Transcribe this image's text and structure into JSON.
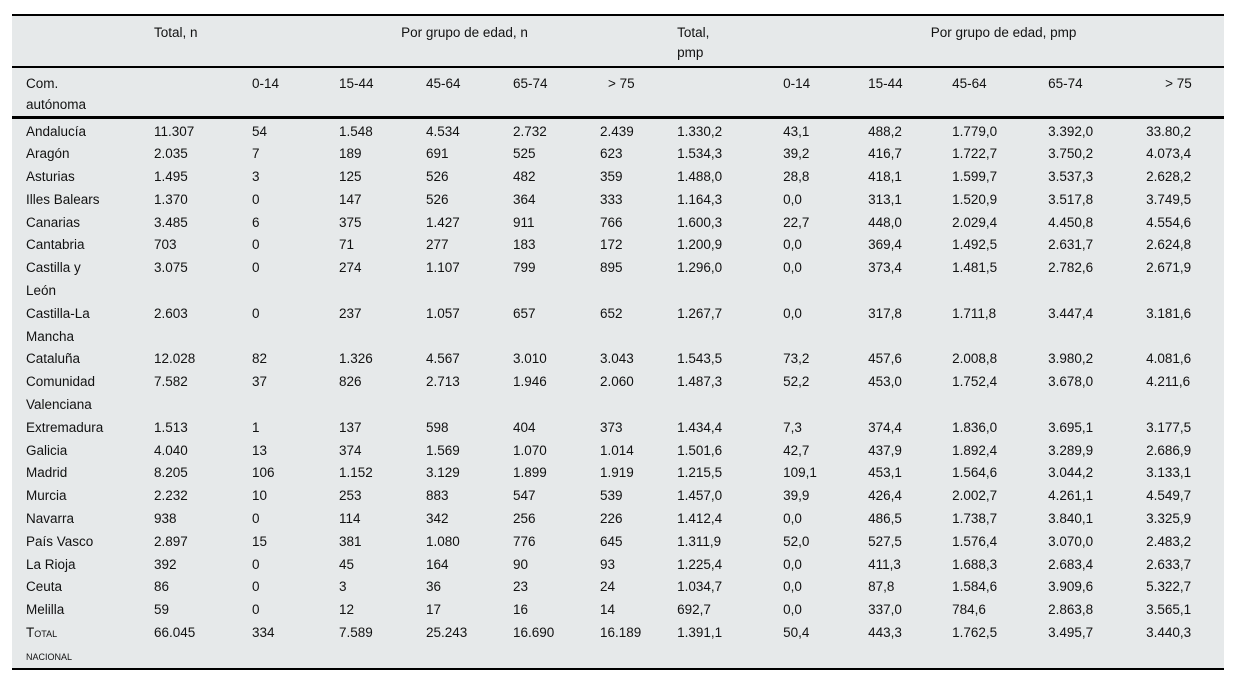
{
  "table": {
    "group_headers": {
      "total_n": "Total, n",
      "age_n": "Por grupo de edad, n",
      "total_pmp_lines": [
        "Total,",
        "pmp"
      ],
      "age_pmp": "Por grupo de edad, pmp"
    },
    "row_header": "Com. autónoma",
    "age_cols": [
      "0-14",
      "15-44",
      "45-64",
      "65-74",
      "> 75"
    ],
    "rows": [
      {
        "name": "Andalucía",
        "values": [
          "11.307",
          "54",
          "1.548",
          "4.534",
          "2.732",
          "2.439",
          "1.330,2",
          "43,1",
          "488,2",
          "1.779,0",
          "3.392,0",
          "33.80,2"
        ]
      },
      {
        "name": "Aragón",
        "values": [
          "2.035",
          "7",
          "189",
          "691",
          "525",
          "623",
          "1.534,3",
          "39,2",
          "416,7",
          "1.722,7",
          "3.750,2",
          "4.073,4"
        ]
      },
      {
        "name": "Asturias",
        "values": [
          "1.495",
          "3",
          "125",
          "526",
          "482",
          "359",
          "1.488,0",
          "28,8",
          "418,1",
          "1.599,7",
          "3.537,3",
          "2.628,2"
        ]
      },
      {
        "name": "Illes Balears",
        "values": [
          "1.370",
          "0",
          "147",
          "526",
          "364",
          "333",
          "1.164,3",
          "0,0",
          "313,1",
          "1.520,9",
          "3.517,8",
          "3.749,5"
        ]
      },
      {
        "name": "Canarias",
        "values": [
          "3.485",
          "6",
          "375",
          "1.427",
          "911",
          "766",
          "1.600,3",
          "22,7",
          "448,0",
          "2.029,4",
          "4.450,8",
          "4.554,6"
        ]
      },
      {
        "name": "Cantabria",
        "values": [
          "703",
          "0",
          "71",
          "277",
          "183",
          "172",
          "1.200,9",
          "0,0",
          "369,4",
          "1.492,5",
          "2.631,7",
          "2.624,8"
        ]
      },
      {
        "name": "Castilla y León",
        "values": [
          "3.075",
          "0",
          "274",
          "1.107",
          "799",
          "895",
          "1.296,0",
          "0,0",
          "373,4",
          "1.481,5",
          "2.782,6",
          "2.671,9"
        ]
      },
      {
        "name": "Castilla-La Mancha",
        "values": [
          "2.603",
          "0",
          "237",
          "1.057",
          "657",
          "652",
          "1.267,7",
          "0,0",
          "317,8",
          "1.711,8",
          "3.447,4",
          "3.181,6"
        ]
      },
      {
        "name": "Cataluña",
        "values": [
          "12.028",
          "82",
          "1.326",
          "4.567",
          "3.010",
          "3.043",
          "1.543,5",
          "73,2",
          "457,6",
          "2.008,8",
          "3.980,2",
          "4.081,6"
        ]
      },
      {
        "name": "Comunidad Valenciana",
        "values": [
          "7.582",
          "37",
          "826",
          "2.713",
          "1.946",
          "2.060",
          "1.487,3",
          "52,2",
          "453,0",
          "1.752,4",
          "3.678,0",
          "4.211,6"
        ]
      },
      {
        "name": "Extremadura",
        "values": [
          "1.513",
          "1",
          "137",
          "598",
          "404",
          "373",
          "1.434,4",
          "7,3",
          "374,4",
          "1.836,0",
          "3.695,1",
          "3.177,5"
        ]
      },
      {
        "name": "Galicia",
        "values": [
          "4.040",
          "13",
          "374",
          "1.569",
          "1.070",
          "1.014",
          "1.501,6",
          "42,7",
          "437,9",
          "1.892,4",
          "3.289,9",
          "2.686,9"
        ]
      },
      {
        "name": "Madrid",
        "values": [
          "8.205",
          "106",
          "1.152",
          "3.129",
          "1.899",
          "1.919",
          "1.215,5",
          "109,1",
          "453,1",
          "1.564,6",
          "3.044,2",
          "3.133,1"
        ]
      },
      {
        "name": "Murcia",
        "values": [
          "2.232",
          "10",
          "253",
          "883",
          "547",
          "539",
          "1.457,0",
          "39,9",
          "426,4",
          "2.002,7",
          "4.261,1",
          "4.549,7"
        ]
      },
      {
        "name": "Navarra",
        "values": [
          "938",
          "0",
          "114",
          "342",
          "256",
          "226",
          "1.412,4",
          "0,0",
          "486,5",
          "1.738,7",
          "3.840,1",
          "3.325,9"
        ]
      },
      {
        "name": "País Vasco",
        "values": [
          "2.897",
          "15",
          "381",
          "1.080",
          "776",
          "645",
          "1.311,9",
          "52,0",
          "527,5",
          "1.576,4",
          "3.070,0",
          "2.483,2"
        ]
      },
      {
        "name": "La Rioja",
        "values": [
          "392",
          "0",
          "45",
          "164",
          "90",
          "93",
          "1.225,4",
          "0,0",
          "411,3",
          "1.688,3",
          "2.683,4",
          "2.633,7"
        ]
      },
      {
        "name": "Ceuta",
        "values": [
          "86",
          "0",
          "3",
          "36",
          "23",
          "24",
          "1.034,7",
          "0,0",
          "87,8",
          "1.584,6",
          "3.909,6",
          "5.322,7"
        ]
      },
      {
        "name": "Melilla",
        "values": [
          "59",
          "0",
          "12",
          "17",
          "16",
          "14",
          "692,7",
          "0,0",
          "337,0",
          "784,6",
          "2.863,8",
          "3.565,1"
        ]
      },
      {
        "name": "Total nacional",
        "is_total": true,
        "values": [
          "66.045",
          "334",
          "7.589",
          "25.243",
          "16.690",
          "16.189",
          "1.391,1",
          "50,4",
          "443,3",
          "1.762,5",
          "3.495,7",
          "3.440,3"
        ]
      }
    ],
    "colors": {
      "table_background": "#e6e9ea",
      "rule_color": "#000000",
      "text_color": "#121212"
    }
  }
}
